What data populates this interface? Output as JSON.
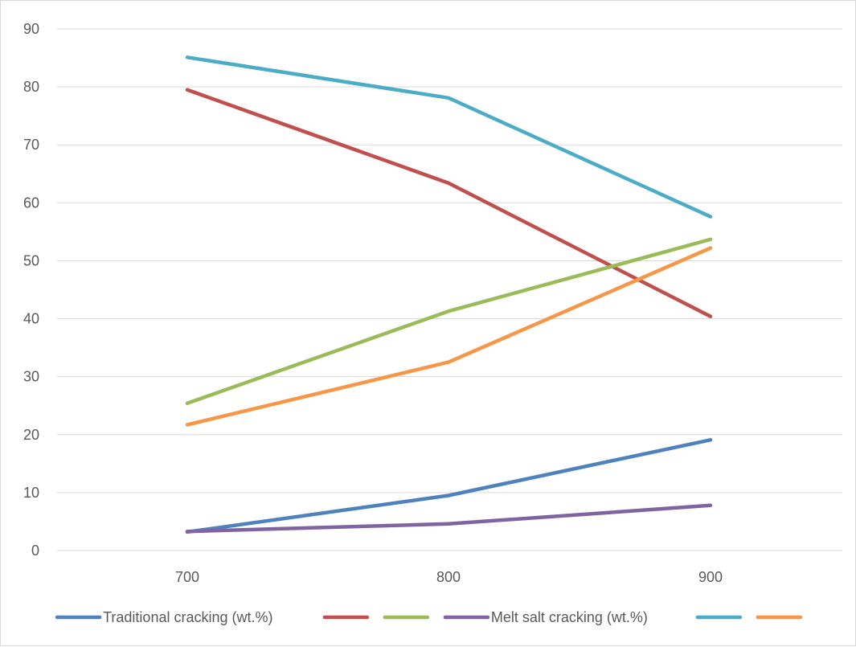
{
  "chart_data": {
    "type": "line",
    "title": "",
    "xlabel": "",
    "ylabel": "",
    "x": [
      700,
      800,
      900
    ],
    "categories": [
      "700",
      "800",
      "900"
    ],
    "ylim": [
      0,
      90
    ],
    "y_ticks": [
      "0",
      "10",
      "20",
      "30",
      "40",
      "50",
      "60",
      "70",
      "80",
      "90"
    ],
    "grid": true,
    "legend_position": "bottom",
    "series": [
      {
        "name": "Traditional cracking (wt.%)",
        "color": "#4F81BD",
        "values": [
          3.2,
          9.5,
          19.1
        ]
      },
      {
        "name": "",
        "color": "#C0504D",
        "values": [
          79.5,
          63.4,
          40.4
        ]
      },
      {
        "name": "",
        "color": "#9BBB59",
        "values": [
          25.4,
          41.3,
          53.7
        ]
      },
      {
        "name": "Melt salt cracking (wt.%)",
        "color": "#8064A2",
        "values": [
          3.3,
          4.6,
          7.8
        ]
      },
      {
        "name": "",
        "color": "#4BACC6",
        "values": [
          85.1,
          78.1,
          57.6
        ]
      },
      {
        "name": "",
        "color": "#F79646",
        "values": [
          21.7,
          32.5,
          52.2
        ]
      }
    ]
  }
}
